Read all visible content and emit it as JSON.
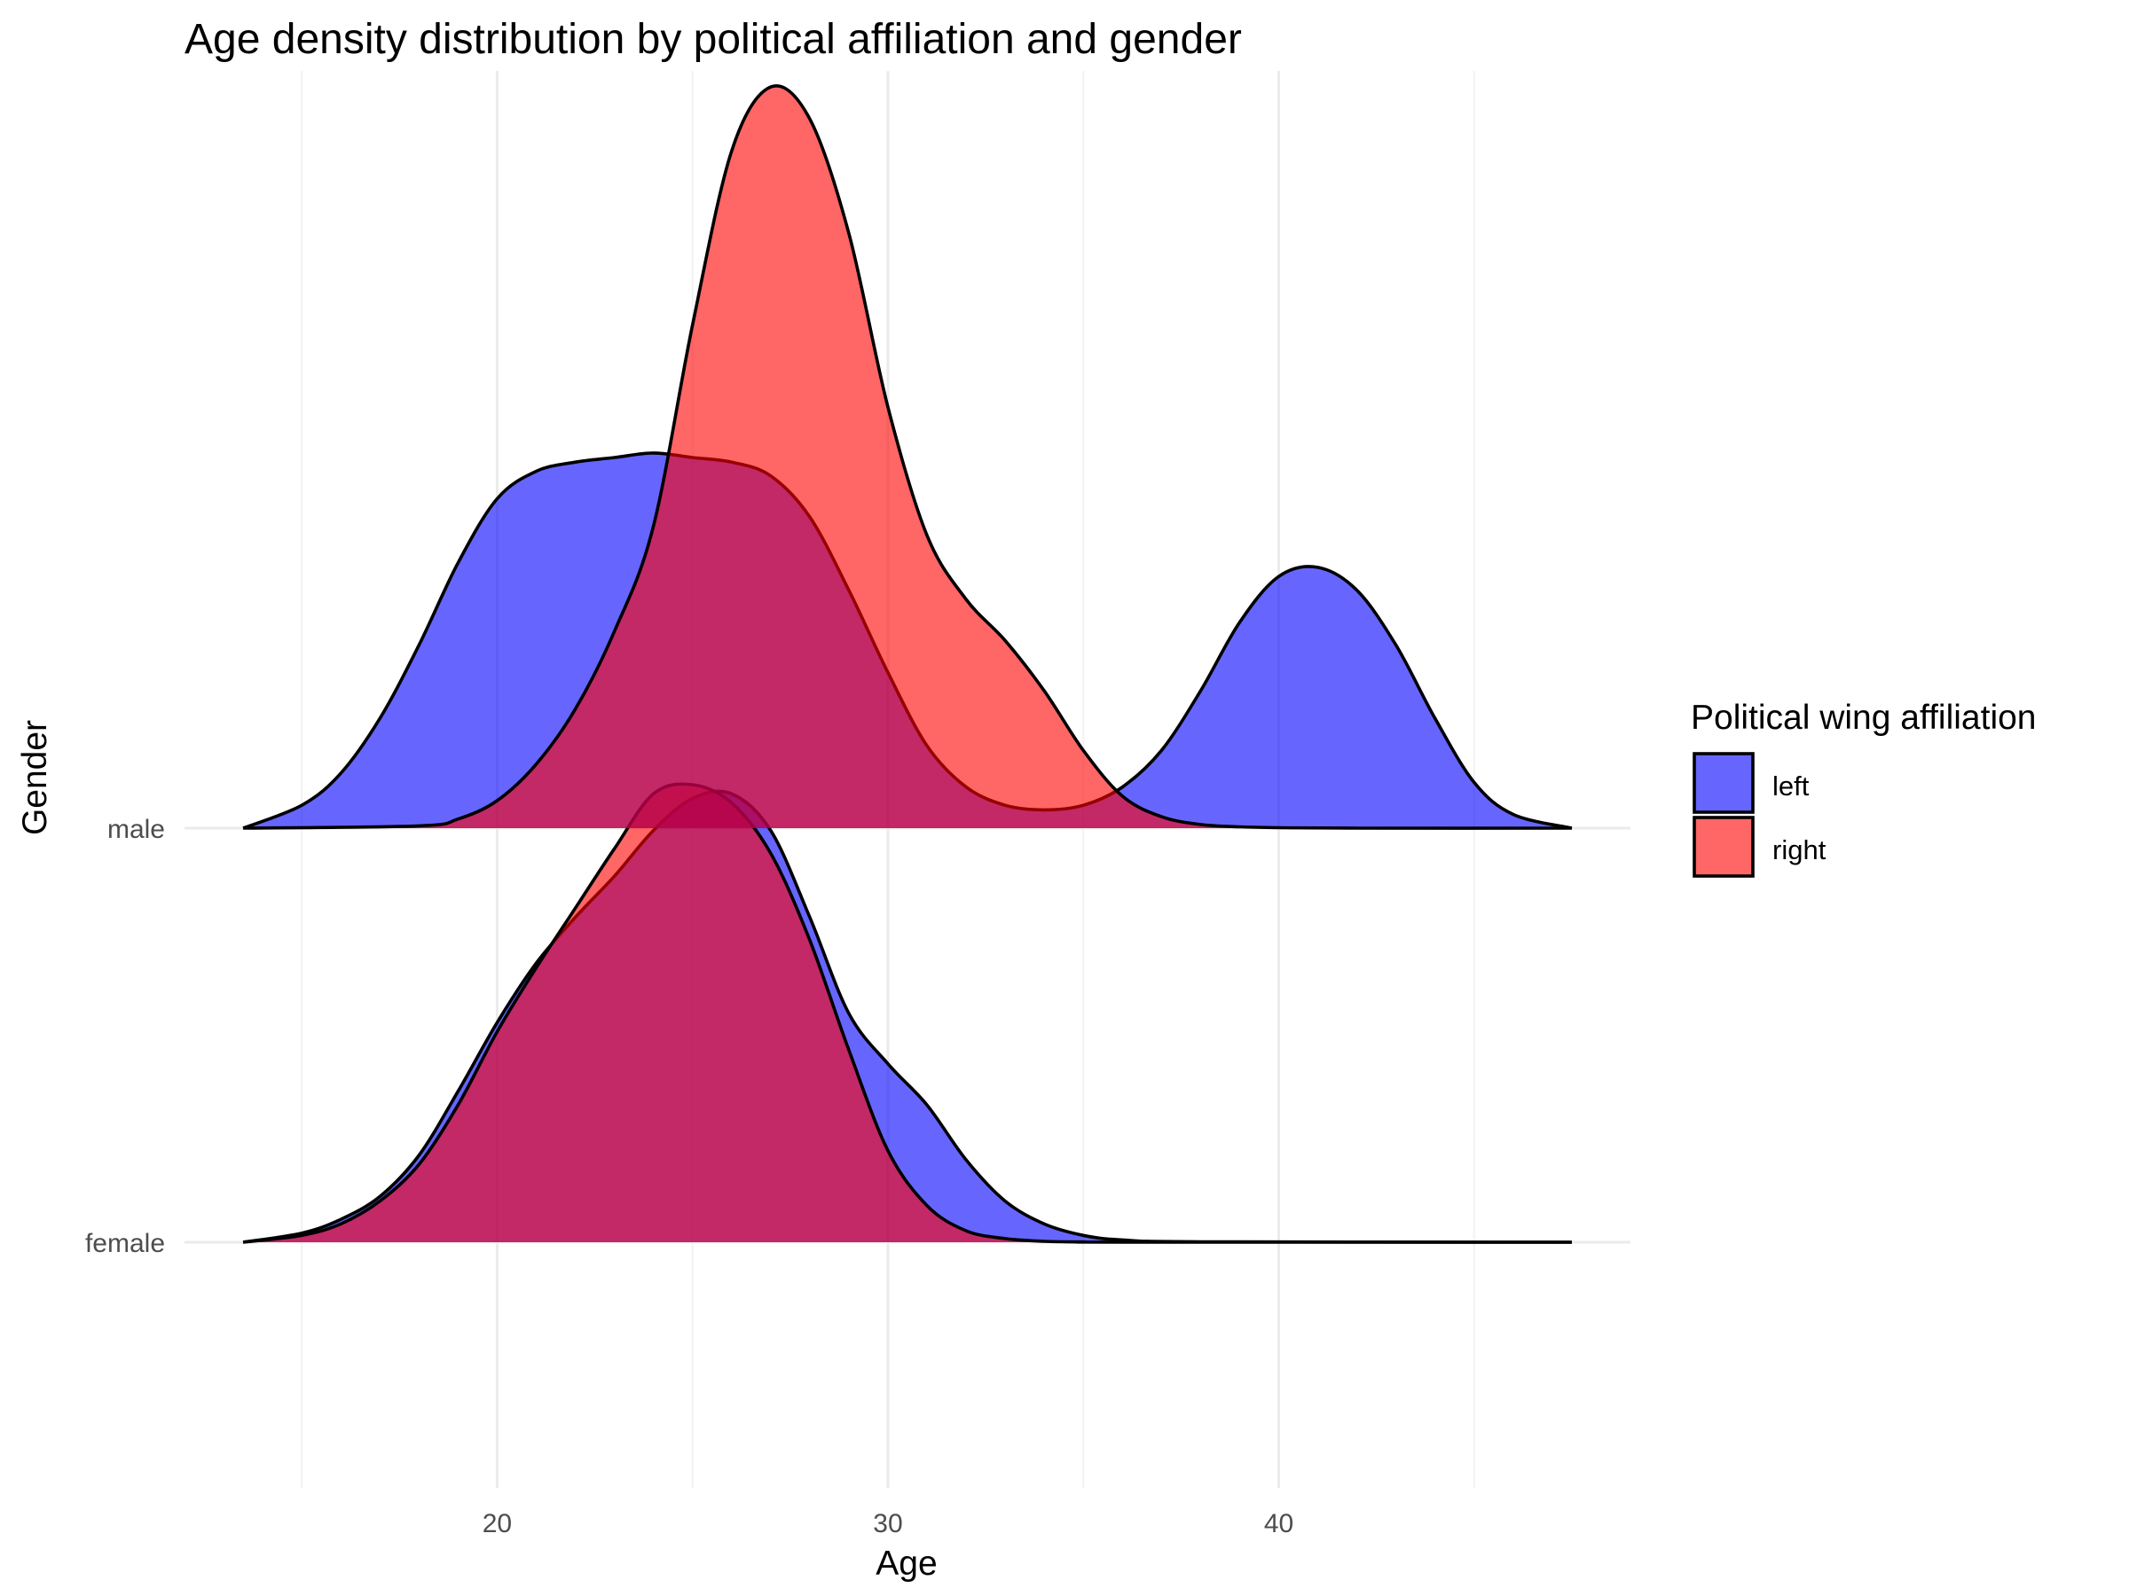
{
  "chart_data": {
    "type": "ridgeline-density",
    "title": "Age density distribution by political affiliation and gender",
    "xlabel": "Age",
    "ylabel": "Gender",
    "xlim": [
      12,
      49
    ],
    "x_ticks": [
      20,
      30,
      40
    ],
    "x_minor_ticks": [
      15,
      25,
      35,
      45
    ],
    "categories": [
      "female",
      "male"
    ],
    "grid": true,
    "legend": {
      "title": "Political wing affiliation",
      "position": "right",
      "entries": [
        {
          "label": "left",
          "color": "#0000FF"
        },
        {
          "label": "right",
          "color": "#FF0000"
        }
      ]
    },
    "fill_alpha": 0.6,
    "series": [
      {
        "name": "left",
        "gender": "female",
        "color": "#0000FF",
        "density_x": [
          13.5,
          15,
          16,
          17,
          18,
          19,
          20,
          21,
          22,
          23,
          24,
          25,
          26,
          27,
          28,
          29,
          30,
          31,
          32,
          33,
          34,
          35,
          36,
          38,
          47.5
        ],
        "density_y": [
          0.0,
          0.02,
          0.05,
          0.1,
          0.19,
          0.33,
          0.48,
          0.61,
          0.71,
          0.8,
          0.9,
          0.97,
          0.98,
          0.9,
          0.71,
          0.5,
          0.39,
          0.3,
          0.18,
          0.09,
          0.04,
          0.015,
          0.005,
          0.001,
          0.0
        ]
      },
      {
        "name": "right",
        "gender": "female",
        "color": "#FF0000",
        "density_x": [
          13.5,
          15,
          16,
          17,
          18,
          19,
          20,
          21,
          22,
          23,
          24,
          25,
          26,
          27,
          28,
          29,
          30,
          31,
          32,
          33,
          34,
          35,
          36,
          47.5
        ],
        "density_y": [
          0.0,
          0.015,
          0.04,
          0.09,
          0.17,
          0.3,
          0.46,
          0.6,
          0.73,
          0.86,
          0.98,
          1.0,
          0.96,
          0.85,
          0.66,
          0.42,
          0.2,
          0.08,
          0.025,
          0.008,
          0.002,
          0.0005,
          0.0001,
          0.0
        ]
      },
      {
        "name": "left",
        "gender": "male",
        "color": "#0000FF",
        "density_x": [
          13.5,
          15,
          16,
          17,
          18,
          19,
          20,
          21,
          22,
          23,
          24,
          25,
          26,
          27,
          28,
          29,
          30,
          31,
          32,
          33,
          34,
          35,
          36,
          37,
          38,
          39,
          40,
          41,
          42,
          43,
          44,
          45,
          46,
          47.5
        ],
        "density_y": [
          0.0,
          0.05,
          0.12,
          0.24,
          0.4,
          0.58,
          0.72,
          0.78,
          0.8,
          0.81,
          0.82,
          0.81,
          0.8,
          0.77,
          0.68,
          0.52,
          0.34,
          0.18,
          0.09,
          0.05,
          0.04,
          0.05,
          0.09,
          0.17,
          0.3,
          0.45,
          0.55,
          0.57,
          0.52,
          0.4,
          0.24,
          0.1,
          0.03,
          0.0
        ]
      },
      {
        "name": "right",
        "gender": "male",
        "color": "#FF0000",
        "density_x": [
          13.5,
          18,
          19,
          20,
          21,
          22,
          23,
          24,
          25,
          26,
          27,
          28,
          29,
          30,
          31,
          32,
          33,
          34,
          35,
          36,
          37,
          38,
          39,
          40,
          42,
          47.5
        ],
        "density_y": [
          0.0,
          0.005,
          0.02,
          0.06,
          0.14,
          0.26,
          0.43,
          0.66,
          1.1,
          1.48,
          1.62,
          1.55,
          1.3,
          0.92,
          0.64,
          0.5,
          0.41,
          0.3,
          0.17,
          0.07,
          0.025,
          0.008,
          0.003,
          0.001,
          0.0,
          0.0
        ]
      }
    ]
  }
}
